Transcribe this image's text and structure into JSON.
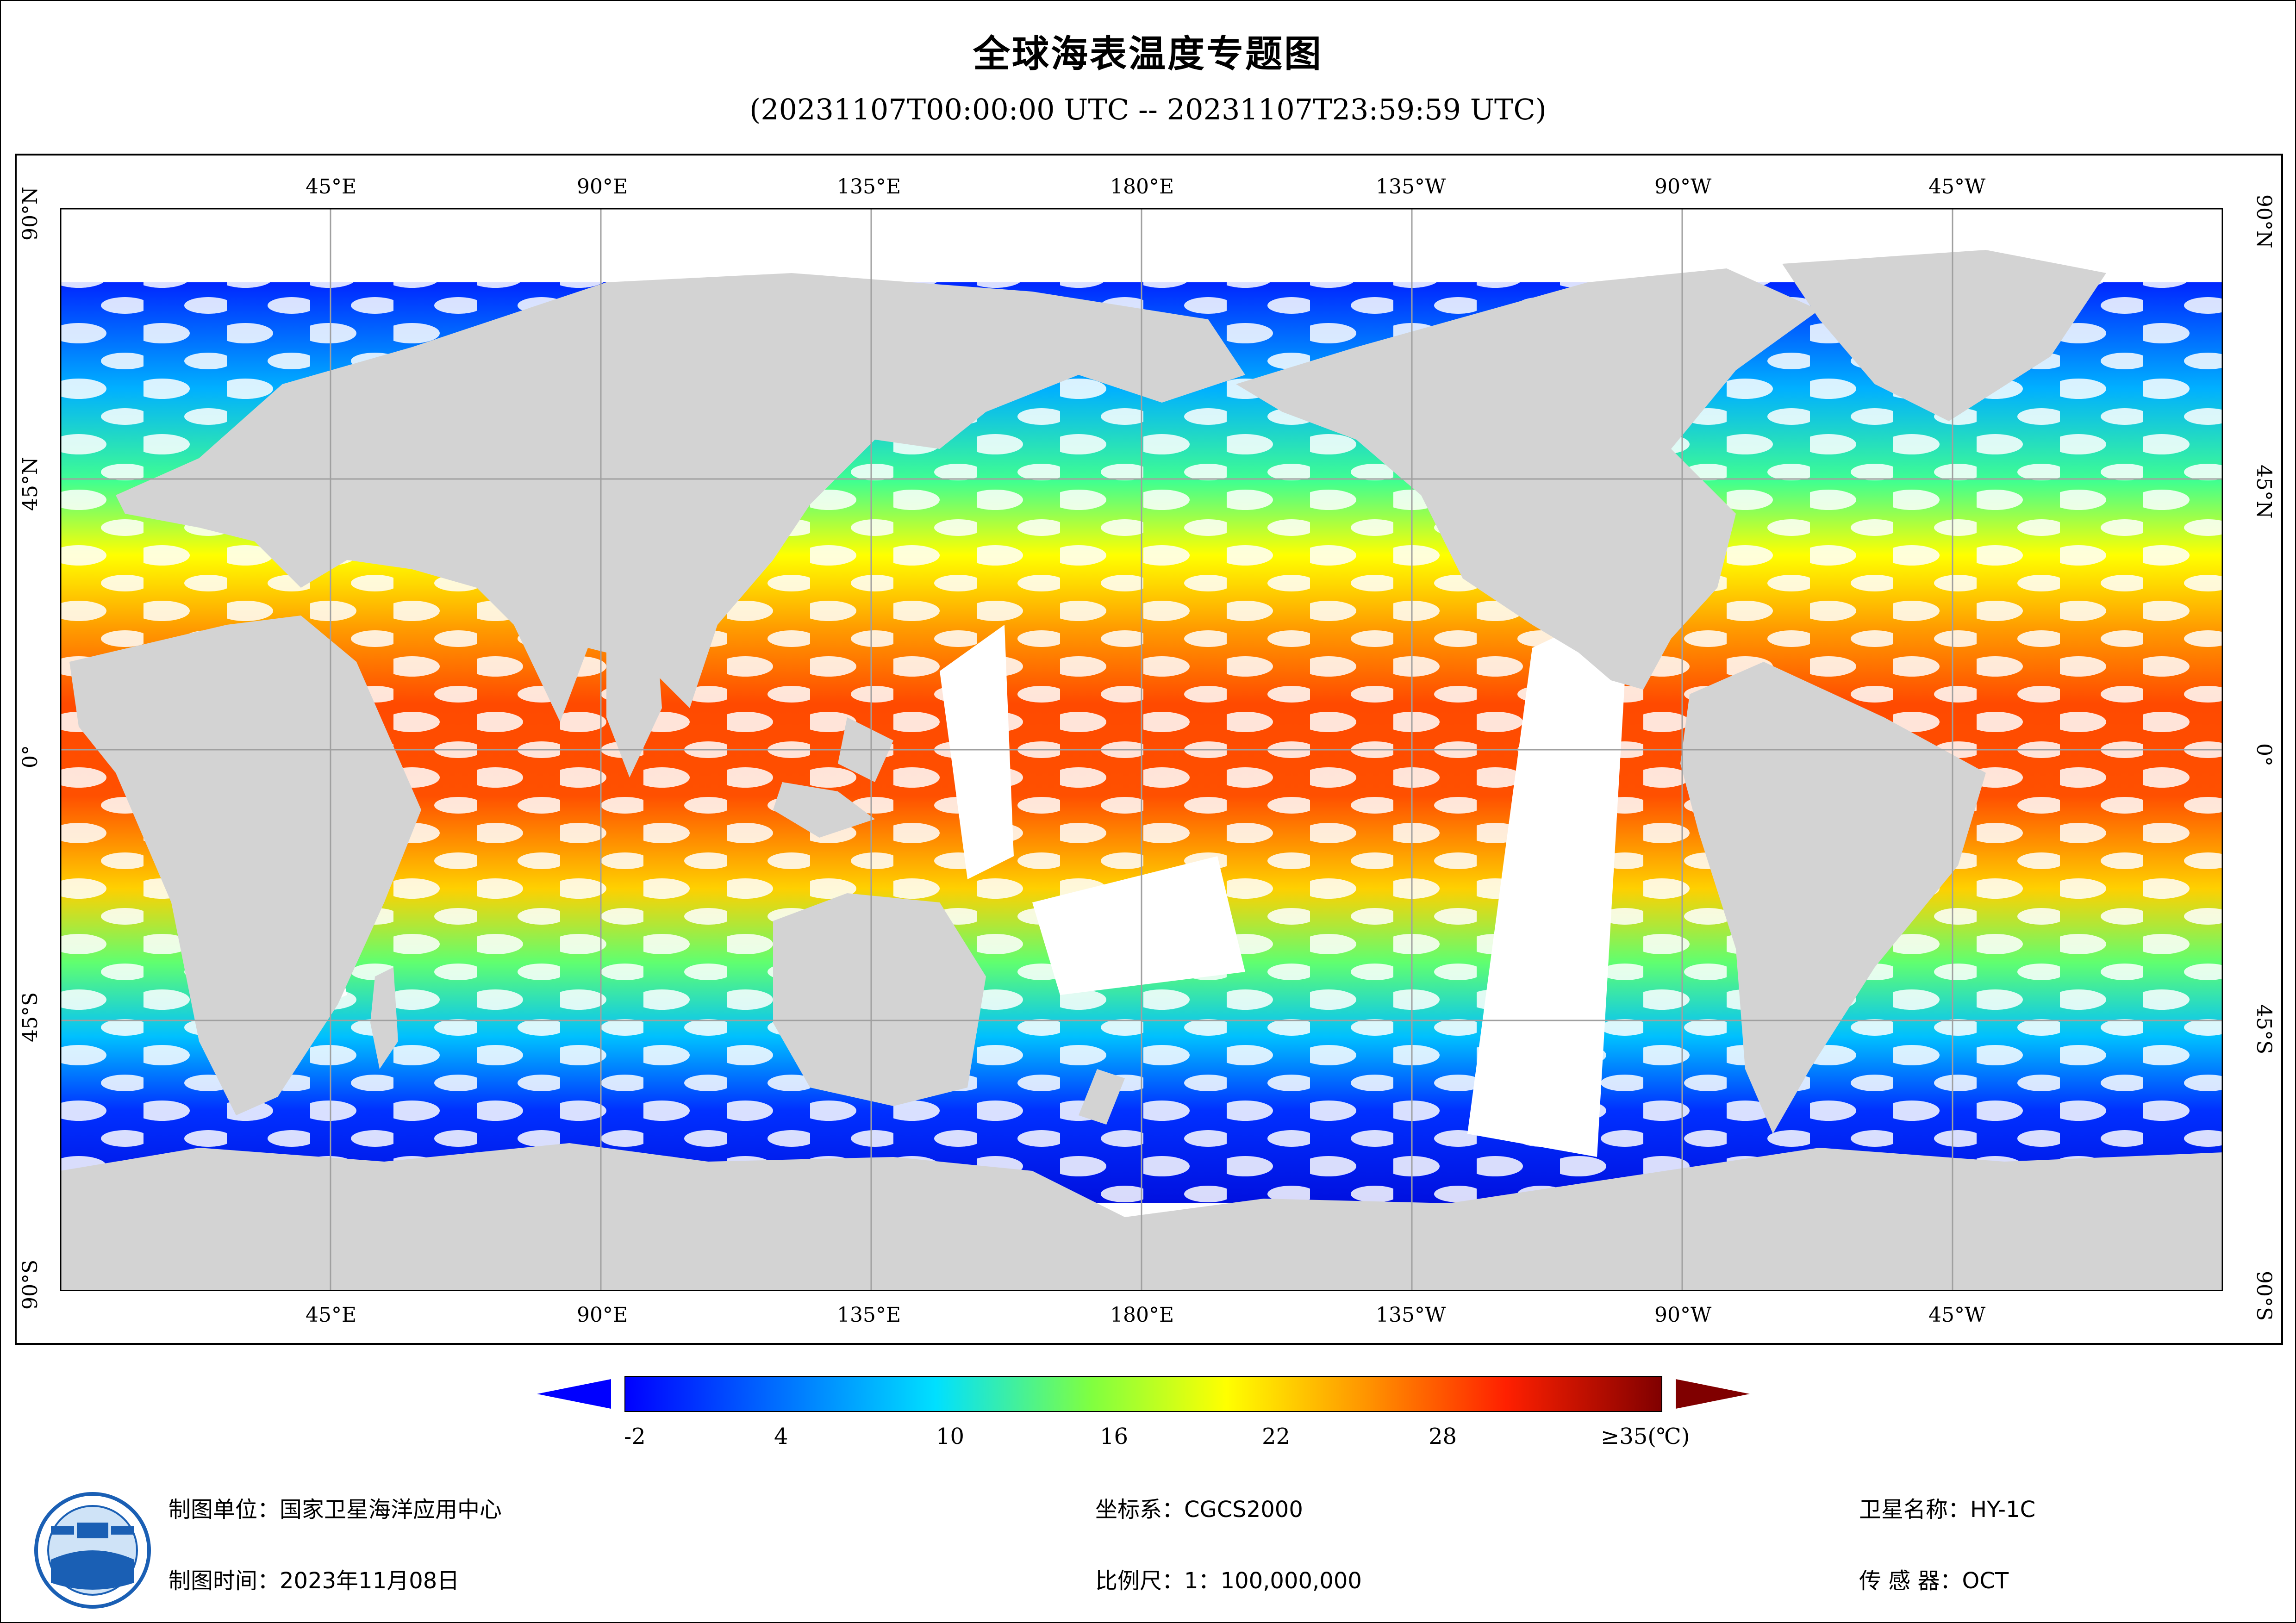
{
  "header": {
    "title": "全球海表温度专题图",
    "subtitle": "(20231107T00:00:00 UTC -- 20231107T23:59:59 UTC)"
  },
  "map": {
    "top_lon_labels": [
      "45°E",
      "90°E",
      "135°E",
      "180°E",
      "135°W",
      "90°W",
      "45°W"
    ],
    "bottom_lon_labels": [
      "45°E",
      "90°E",
      "135°E",
      "180°E",
      "135°W",
      "90°W",
      "45°W"
    ],
    "left_lat_labels": [
      "90°N",
      "45°N",
      "0°",
      "45°S",
      "90°S"
    ],
    "right_lat_labels": [
      "90°N",
      "45°N",
      "0°",
      "45°S",
      "90°S"
    ],
    "colors": {
      "land": "#d3d3d3",
      "nodata": "#ffffff",
      "grid": "#a0a0a0"
    }
  },
  "legend": {
    "tick_labels": [
      "-2",
      "4",
      "10",
      "16",
      "22",
      "28",
      "≥35(℃)"
    ],
    "min_value": -2,
    "max_value": 35,
    "colors": [
      "#0000ff",
      "#00a0ff",
      "#00ffe0",
      "#80ff40",
      "#ffff00",
      "#ff9000",
      "#ff2000",
      "#800000"
    ]
  },
  "footer": {
    "unit_label": "制图单位：",
    "unit_value": "国家卫星海洋应用中心",
    "time_label": "制图时间：",
    "time_value": "2023年11月08日",
    "coord_label": "坐标系：",
    "coord_value": "CGCS2000",
    "scale_label": "比例尺：",
    "scale_value": "1：100,000,000",
    "satellite_label": "卫星名称：",
    "satellite_value": "HY-1C",
    "sensor_label": "传 感 器：",
    "sensor_value": "OCT"
  }
}
